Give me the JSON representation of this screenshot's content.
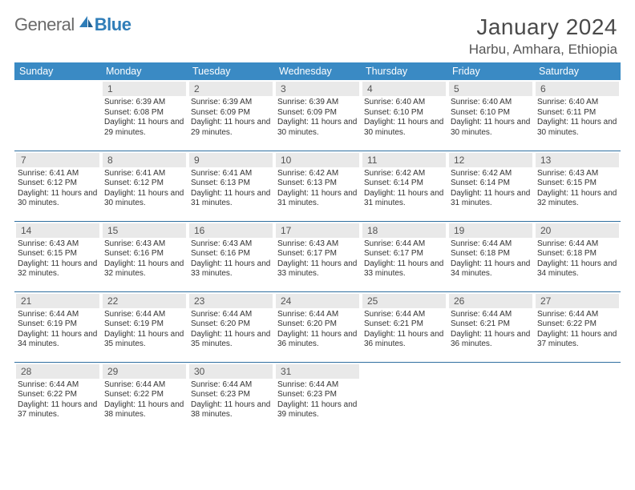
{
  "brand": {
    "part1": "General",
    "part2": "Blue"
  },
  "header": {
    "title": "January 2024",
    "location": "Harbu, Amhara, Ethiopia"
  },
  "colors": {
    "header_bg": "#3a8ac4",
    "week_divider": "#2f6fa0",
    "daynum_bg": "#e9e9e9",
    "brand_gray": "#6a6a6a",
    "brand_blue": "#2f7db8"
  },
  "weekdays": [
    "Sunday",
    "Monday",
    "Tuesday",
    "Wednesday",
    "Thursday",
    "Friday",
    "Saturday"
  ],
  "weeks": [
    [
      null,
      {
        "n": "1",
        "sr": "6:39 AM",
        "ss": "6:08 PM",
        "dl": "11 hours and 29 minutes."
      },
      {
        "n": "2",
        "sr": "6:39 AM",
        "ss": "6:09 PM",
        "dl": "11 hours and 29 minutes."
      },
      {
        "n": "3",
        "sr": "6:39 AM",
        "ss": "6:09 PM",
        "dl": "11 hours and 30 minutes."
      },
      {
        "n": "4",
        "sr": "6:40 AM",
        "ss": "6:10 PM",
        "dl": "11 hours and 30 minutes."
      },
      {
        "n": "5",
        "sr": "6:40 AM",
        "ss": "6:10 PM",
        "dl": "11 hours and 30 minutes."
      },
      {
        "n": "6",
        "sr": "6:40 AM",
        "ss": "6:11 PM",
        "dl": "11 hours and 30 minutes."
      }
    ],
    [
      {
        "n": "7",
        "sr": "6:41 AM",
        "ss": "6:12 PM",
        "dl": "11 hours and 30 minutes."
      },
      {
        "n": "8",
        "sr": "6:41 AM",
        "ss": "6:12 PM",
        "dl": "11 hours and 30 minutes."
      },
      {
        "n": "9",
        "sr": "6:41 AM",
        "ss": "6:13 PM",
        "dl": "11 hours and 31 minutes."
      },
      {
        "n": "10",
        "sr": "6:42 AM",
        "ss": "6:13 PM",
        "dl": "11 hours and 31 minutes."
      },
      {
        "n": "11",
        "sr": "6:42 AM",
        "ss": "6:14 PM",
        "dl": "11 hours and 31 minutes."
      },
      {
        "n": "12",
        "sr": "6:42 AM",
        "ss": "6:14 PM",
        "dl": "11 hours and 31 minutes."
      },
      {
        "n": "13",
        "sr": "6:43 AM",
        "ss": "6:15 PM",
        "dl": "11 hours and 32 minutes."
      }
    ],
    [
      {
        "n": "14",
        "sr": "6:43 AM",
        "ss": "6:15 PM",
        "dl": "11 hours and 32 minutes."
      },
      {
        "n": "15",
        "sr": "6:43 AM",
        "ss": "6:16 PM",
        "dl": "11 hours and 32 minutes."
      },
      {
        "n": "16",
        "sr": "6:43 AM",
        "ss": "6:16 PM",
        "dl": "11 hours and 33 minutes."
      },
      {
        "n": "17",
        "sr": "6:43 AM",
        "ss": "6:17 PM",
        "dl": "11 hours and 33 minutes."
      },
      {
        "n": "18",
        "sr": "6:44 AM",
        "ss": "6:17 PM",
        "dl": "11 hours and 33 minutes."
      },
      {
        "n": "19",
        "sr": "6:44 AM",
        "ss": "6:18 PM",
        "dl": "11 hours and 34 minutes."
      },
      {
        "n": "20",
        "sr": "6:44 AM",
        "ss": "6:18 PM",
        "dl": "11 hours and 34 minutes."
      }
    ],
    [
      {
        "n": "21",
        "sr": "6:44 AM",
        "ss": "6:19 PM",
        "dl": "11 hours and 34 minutes."
      },
      {
        "n": "22",
        "sr": "6:44 AM",
        "ss": "6:19 PM",
        "dl": "11 hours and 35 minutes."
      },
      {
        "n": "23",
        "sr": "6:44 AM",
        "ss": "6:20 PM",
        "dl": "11 hours and 35 minutes."
      },
      {
        "n": "24",
        "sr": "6:44 AM",
        "ss": "6:20 PM",
        "dl": "11 hours and 36 minutes."
      },
      {
        "n": "25",
        "sr": "6:44 AM",
        "ss": "6:21 PM",
        "dl": "11 hours and 36 minutes."
      },
      {
        "n": "26",
        "sr": "6:44 AM",
        "ss": "6:21 PM",
        "dl": "11 hours and 36 minutes."
      },
      {
        "n": "27",
        "sr": "6:44 AM",
        "ss": "6:22 PM",
        "dl": "11 hours and 37 minutes."
      }
    ],
    [
      {
        "n": "28",
        "sr": "6:44 AM",
        "ss": "6:22 PM",
        "dl": "11 hours and 37 minutes."
      },
      {
        "n": "29",
        "sr": "6:44 AM",
        "ss": "6:22 PM",
        "dl": "11 hours and 38 minutes."
      },
      {
        "n": "30",
        "sr": "6:44 AM",
        "ss": "6:23 PM",
        "dl": "11 hours and 38 minutes."
      },
      {
        "n": "31",
        "sr": "6:44 AM",
        "ss": "6:23 PM",
        "dl": "11 hours and 39 minutes."
      },
      null,
      null,
      null
    ]
  ],
  "labels": {
    "sunrise": "Sunrise:",
    "sunset": "Sunset:",
    "daylight": "Daylight:"
  }
}
